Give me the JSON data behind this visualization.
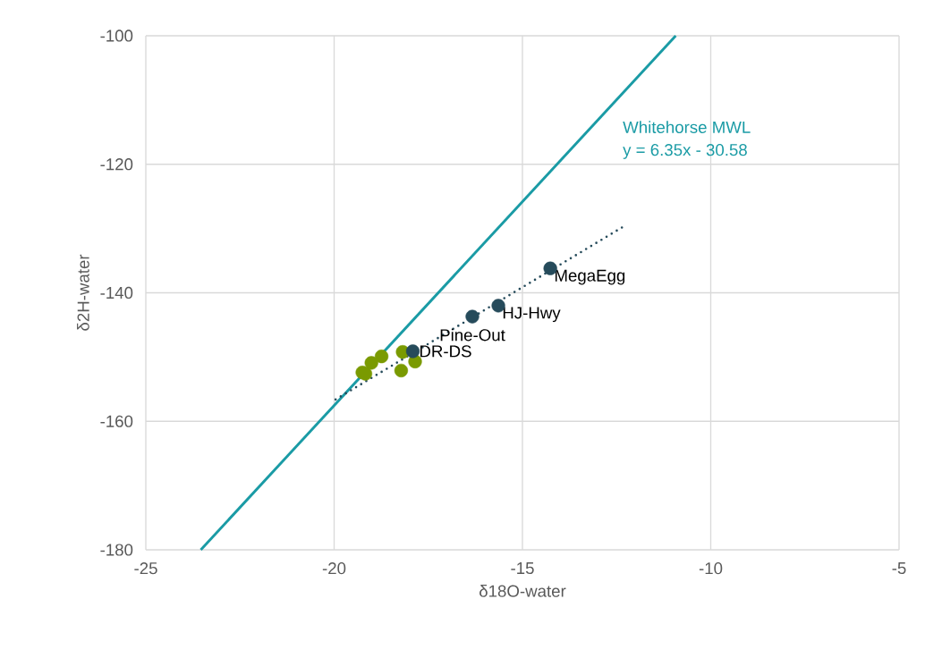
{
  "chart_data": {
    "type": "scatter",
    "xlabel": "δ18O-water",
    "ylabel": "δ2H-water",
    "xlim": [
      -25,
      -5
    ],
    "ylim": [
      -180,
      -100
    ],
    "xticks": [
      -25,
      -20,
      -15,
      -10,
      -5
    ],
    "yticks": [
      -180,
      -160,
      -140,
      -120,
      -100
    ],
    "grid": true,
    "series": [
      {
        "type": "line",
        "name": "Whitehorse MWL",
        "color": "#1a9ba5",
        "line_style": "solid",
        "marker": "none",
        "x": [
          -23.54,
          -10.93
        ],
        "values": [
          -180,
          -100
        ]
      },
      {
        "type": "line",
        "color": "#264b5b",
        "line_style": "dotted",
        "marker": "none",
        "x": [
          -19.96,
          -12.29
        ],
        "values": [
          -156.6,
          -129.6
        ]
      },
      {
        "marker": "circle",
        "color": "#7a9a01",
        "x": [
          -18.18,
          -17.85,
          -18.22,
          -18.74,
          -19.01,
          -19.25,
          -19.17
        ],
        "values": [
          -149.2,
          -150.7,
          -152.1,
          -149.9,
          -150.9,
          -152.4,
          -152.6
        ]
      },
      {
        "marker": "circle",
        "color": "#264b5b",
        "x": [
          -14.26,
          -15.64,
          -16.33,
          -17.91
        ],
        "values": [
          -136.2,
          -142.0,
          -143.7,
          -149.1
        ]
      }
    ],
    "annotations": [
      {
        "text": "MegaEgg",
        "x": -14.26,
        "y": -136.2
      },
      {
        "text": "HJ-Hwy",
        "x": -15.64,
        "y": -142.0
      },
      {
        "text": "Pine-Out",
        "x": -16.33,
        "y": -143.7
      },
      {
        "text": "DR-DS",
        "x": -17.91,
        "y": -149.1
      },
      "y = 6.35x - 30.58"
    ]
  }
}
